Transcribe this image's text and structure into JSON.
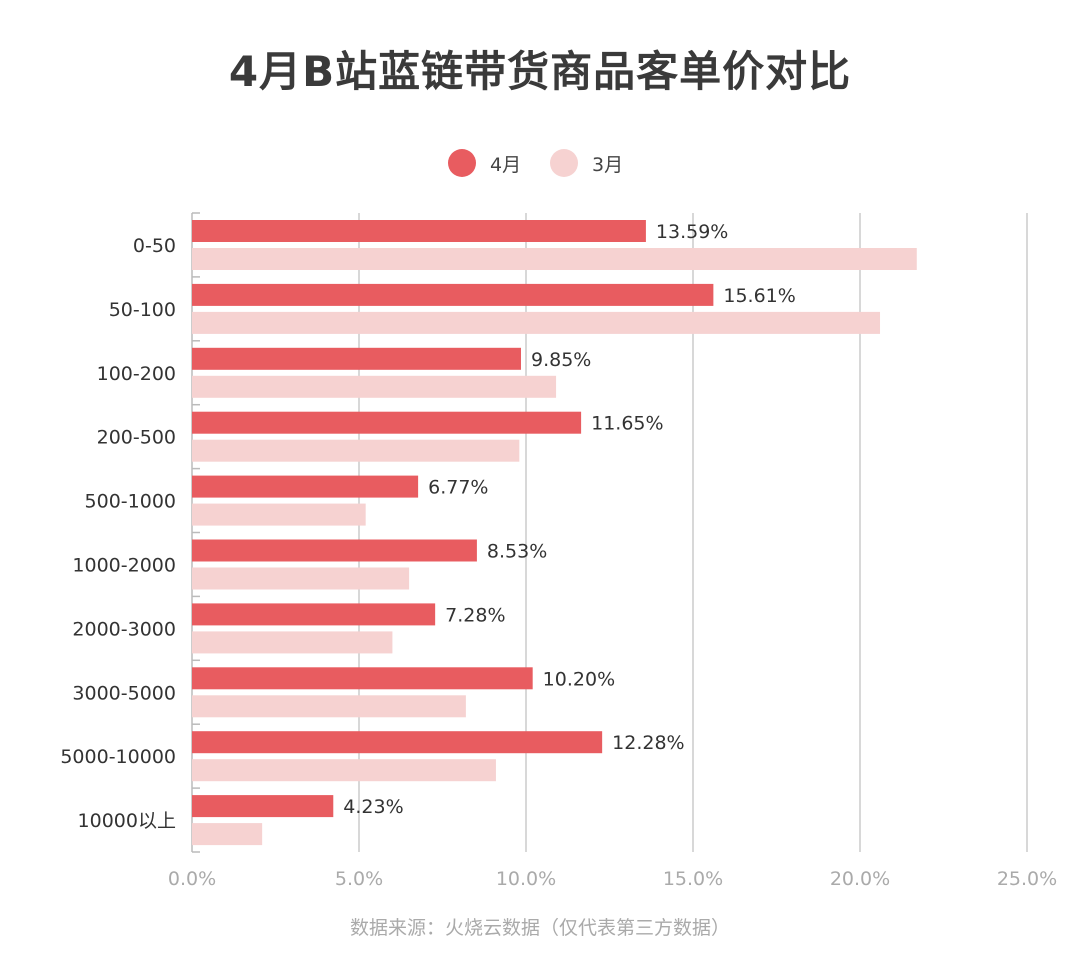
{
  "title": "4月B站蓝链带货商品客单价对比",
  "footnote": "数据来源：火烧云数据（仅代表第三方数据）",
  "colors": {
    "april": "#e85c60",
    "march": "#f6d2d1",
    "grid": "#cccccc",
    "axis": "#bbbbbb"
  },
  "chart_data": {
    "type": "bar",
    "orientation": "horizontal",
    "title": "4月B站蓝链带货商品客单价对比",
    "categories": [
      "0-50",
      "50-100",
      "100-200",
      "200-500",
      "500-1000",
      "1000-2000",
      "2000-3000",
      "3000-5000",
      "5000-10000",
      "10000以上"
    ],
    "series": [
      {
        "name": "4月",
        "values": [
          13.59,
          15.61,
          9.85,
          11.65,
          6.77,
          8.53,
          7.28,
          10.2,
          12.28,
          4.23
        ],
        "labels": [
          "13.59%",
          "15.61%",
          "9.85%",
          "11.65%",
          "6.77%",
          "8.53%",
          "7.28%",
          "10.20%",
          "12.28%",
          "4.23%"
        ]
      },
      {
        "name": "3月",
        "values": [
          21.7,
          20.6,
          10.9,
          9.8,
          5.2,
          6.5,
          6.0,
          8.2,
          9.1,
          2.1
        ]
      }
    ],
    "xlim": [
      0,
      25
    ],
    "xticks": [
      "0.0%",
      "5.0%",
      "10.0%",
      "15.0%",
      "20.0%",
      "25.0%"
    ],
    "xtick_values": [
      0,
      5,
      10,
      15,
      20,
      25
    ],
    "grid": true,
    "legend": "top-center"
  }
}
